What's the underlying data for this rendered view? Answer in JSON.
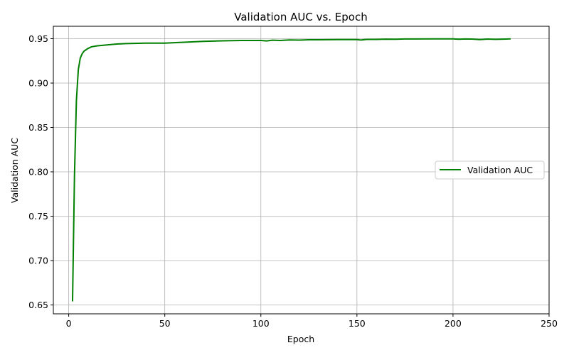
{
  "chart_data": {
    "type": "line",
    "title": "Validation AUC vs. Epoch",
    "xlabel": "Epoch",
    "ylabel": "Validation AUC",
    "xlim": [
      -8,
      250
    ],
    "ylim": [
      0.64,
      0.964
    ],
    "xticks": [
      0,
      50,
      100,
      150,
      200,
      250
    ],
    "yticks": [
      0.65,
      0.7,
      0.75,
      0.8,
      0.85,
      0.9,
      0.95
    ],
    "grid": true,
    "legend_position": "center-right",
    "series": [
      {
        "name": "Validation AUC",
        "color": "#008000",
        "x": [
          2,
          3,
          4,
          5,
          6,
          7,
          8,
          10,
          12,
          15,
          20,
          25,
          30,
          40,
          50,
          55,
          60,
          65,
          70,
          75,
          80,
          90,
          100,
          103,
          106,
          110,
          115,
          120,
          125,
          130,
          140,
          150,
          152,
          155,
          160,
          165,
          170,
          175,
          180,
          190,
          200,
          203,
          206,
          210,
          214,
          218,
          222,
          226,
          230
        ],
        "values": [
          0.654,
          0.795,
          0.88,
          0.915,
          0.928,
          0.933,
          0.936,
          0.939,
          0.941,
          0.942,
          0.943,
          0.944,
          0.9445,
          0.945,
          0.945,
          0.9455,
          0.946,
          0.9465,
          0.947,
          0.9473,
          0.9476,
          0.948,
          0.948,
          0.9475,
          0.9483,
          0.948,
          0.9486,
          0.9484,
          0.9488,
          0.9488,
          0.949,
          0.949,
          0.9485,
          0.9492,
          0.9492,
          0.9495,
          0.9494,
          0.9497,
          0.9497,
          0.9498,
          0.9498,
          0.9494,
          0.9497,
          0.9496,
          0.949,
          0.9496,
          0.9493,
          0.9495,
          0.9498
        ]
      }
    ]
  }
}
